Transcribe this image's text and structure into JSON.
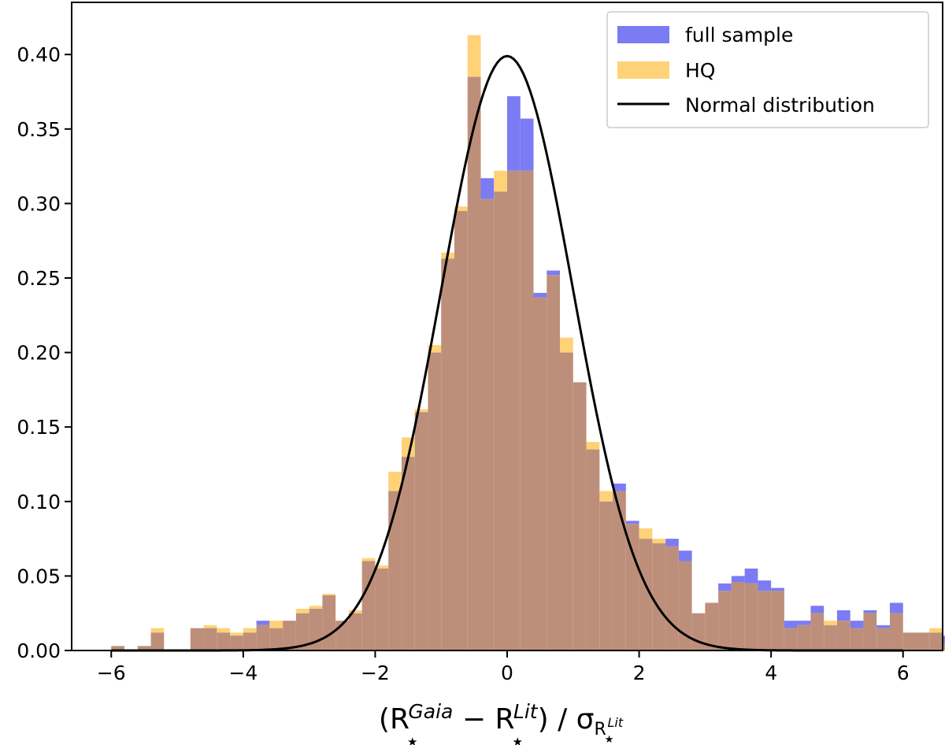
{
  "chart_data": {
    "type": "bar",
    "title": "",
    "xlabel": "(R★Gaia − R★Lit) / σR★Lit",
    "xlabel_parts": {
      "open": "(R",
      "sup1": "Gaia",
      "minus": " − R",
      "sup2": "Lit",
      "close": ") / σ",
      "sub_r": "R",
      "sub_sup": "Lit",
      "star": "★"
    },
    "ylabel": "",
    "xlim": [
      -6.6,
      6.6
    ],
    "ylim": [
      0.0,
      0.435
    ],
    "xticks": [
      -6,
      -4,
      -2,
      0,
      2,
      4,
      6
    ],
    "xtick_labels": [
      "−6",
      "−4",
      "−2",
      "0",
      "2",
      "4",
      "6"
    ],
    "yticks": [
      0.0,
      0.05,
      0.1,
      0.15,
      0.2,
      0.25,
      0.3,
      0.35,
      0.4
    ],
    "ytick_labels": [
      "0.00",
      "0.05",
      "0.10",
      "0.15",
      "0.20",
      "0.25",
      "0.30",
      "0.35",
      "0.40"
    ],
    "bin_start": -6.0,
    "bin_width": 0.2,
    "series": [
      {
        "name": "full sample",
        "color": "#7b7bf4",
        "values": [
          0.003,
          0.0,
          0.003,
          0.012,
          0.0,
          0.0,
          0.015,
          0.015,
          0.012,
          0.01,
          0.012,
          0.02,
          0.015,
          0.02,
          0.025,
          0.028,
          0.037,
          0.02,
          0.025,
          0.06,
          0.055,
          0.107,
          0.13,
          0.16,
          0.2,
          0.263,
          0.295,
          0.385,
          0.317,
          0.308,
          0.372,
          0.357,
          0.24,
          0.255,
          0.2,
          0.18,
          0.135,
          0.1,
          0.112,
          0.087,
          0.075,
          0.072,
          0.075,
          0.067,
          0.025,
          0.032,
          0.045,
          0.05,
          0.055,
          0.047,
          0.042,
          0.02,
          0.02,
          0.03,
          0.017,
          0.027,
          0.02,
          0.027,
          0.017,
          0.032,
          0.012,
          0.012,
          0.012,
          0.01
        ]
      },
      {
        "name": "HQ",
        "color": "#ffd278",
        "values": [
          0.003,
          0.0,
          0.003,
          0.015,
          0.0,
          0.0,
          0.015,
          0.017,
          0.015,
          0.012,
          0.015,
          0.017,
          0.02,
          0.02,
          0.028,
          0.03,
          0.038,
          0.02,
          0.027,
          0.062,
          0.057,
          0.12,
          0.143,
          0.162,
          0.205,
          0.267,
          0.298,
          0.413,
          0.303,
          0.322,
          0.322,
          0.322,
          0.237,
          0.252,
          0.21,
          0.18,
          0.14,
          0.107,
          0.107,
          0.085,
          0.082,
          0.075,
          0.07,
          0.06,
          0.025,
          0.032,
          0.04,
          0.046,
          0.045,
          0.04,
          0.04,
          0.015,
          0.017,
          0.025,
          0.02,
          0.02,
          0.015,
          0.025,
          0.015,
          0.025,
          0.012,
          0.012,
          0.015,
          0.005
        ]
      },
      {
        "name": "Normal distribution",
        "color": "#000000",
        "kind": "line",
        "mean": 0.0,
        "sd": 1.0
      }
    ],
    "overlap_color": "#bd8f7b",
    "legend": {
      "position": "top-right",
      "entries": [
        "full sample",
        "HQ",
        "Normal distribution"
      ]
    }
  }
}
